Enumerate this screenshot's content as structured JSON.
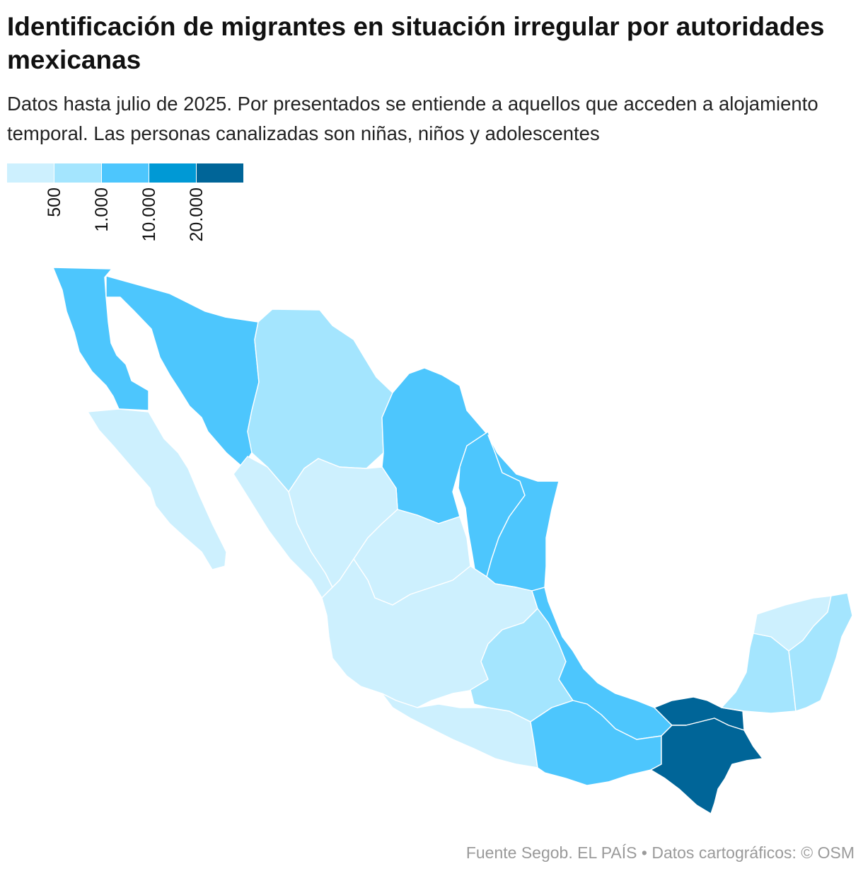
{
  "header": {
    "title": "Identificación de migrantes en situación irregular por autoridades mexicanas",
    "subtitle": "Datos hasta julio de 2025. Por presentados se entiende a aquellos que acceden a alojamiento temporal. Las personas canalizadas son niñas, niños y adolescentes"
  },
  "legend": {
    "colors": [
      "#cdf0fe",
      "#a4e5fe",
      "#4dc6fd",
      "#0099d5",
      "#006598"
    ],
    "ticks": [
      "500",
      "1.000",
      "10.000",
      "20.000"
    ]
  },
  "map": {
    "regions": [
      {
        "name": "Baja California",
        "class": 2
      },
      {
        "name": "Sonora",
        "class": 2
      },
      {
        "name": "Chihuahua",
        "class": 1
      },
      {
        "name": "Coahuila",
        "class": 2
      },
      {
        "name": "Nuevo León",
        "class": 2
      },
      {
        "name": "Tamaulipas",
        "class": 2
      },
      {
        "name": "Baja California Sur",
        "class": 0
      },
      {
        "name": "Sinaloa",
        "class": 0
      },
      {
        "name": "Durango",
        "class": 0
      },
      {
        "name": "Zacatecas",
        "class": 0
      },
      {
        "name": "Centro-Occidente",
        "class": 0
      },
      {
        "name": "Guerrero",
        "class": 0
      },
      {
        "name": "Centro",
        "class": 1
      },
      {
        "name": "Veracruz",
        "class": 2
      },
      {
        "name": "Oaxaca",
        "class": 2
      },
      {
        "name": "Tabasco",
        "class": 4
      },
      {
        "name": "Chiapas",
        "class": 4
      },
      {
        "name": "Campeche",
        "class": 1
      },
      {
        "name": "Yucatán",
        "class": 0
      },
      {
        "name": "Quintana Roo",
        "class": 1
      }
    ]
  },
  "footer": {
    "source": "Fuente Segob. EL PAÍS",
    "separator": "•",
    "credits": "Datos cartográficos: © OSM"
  }
}
